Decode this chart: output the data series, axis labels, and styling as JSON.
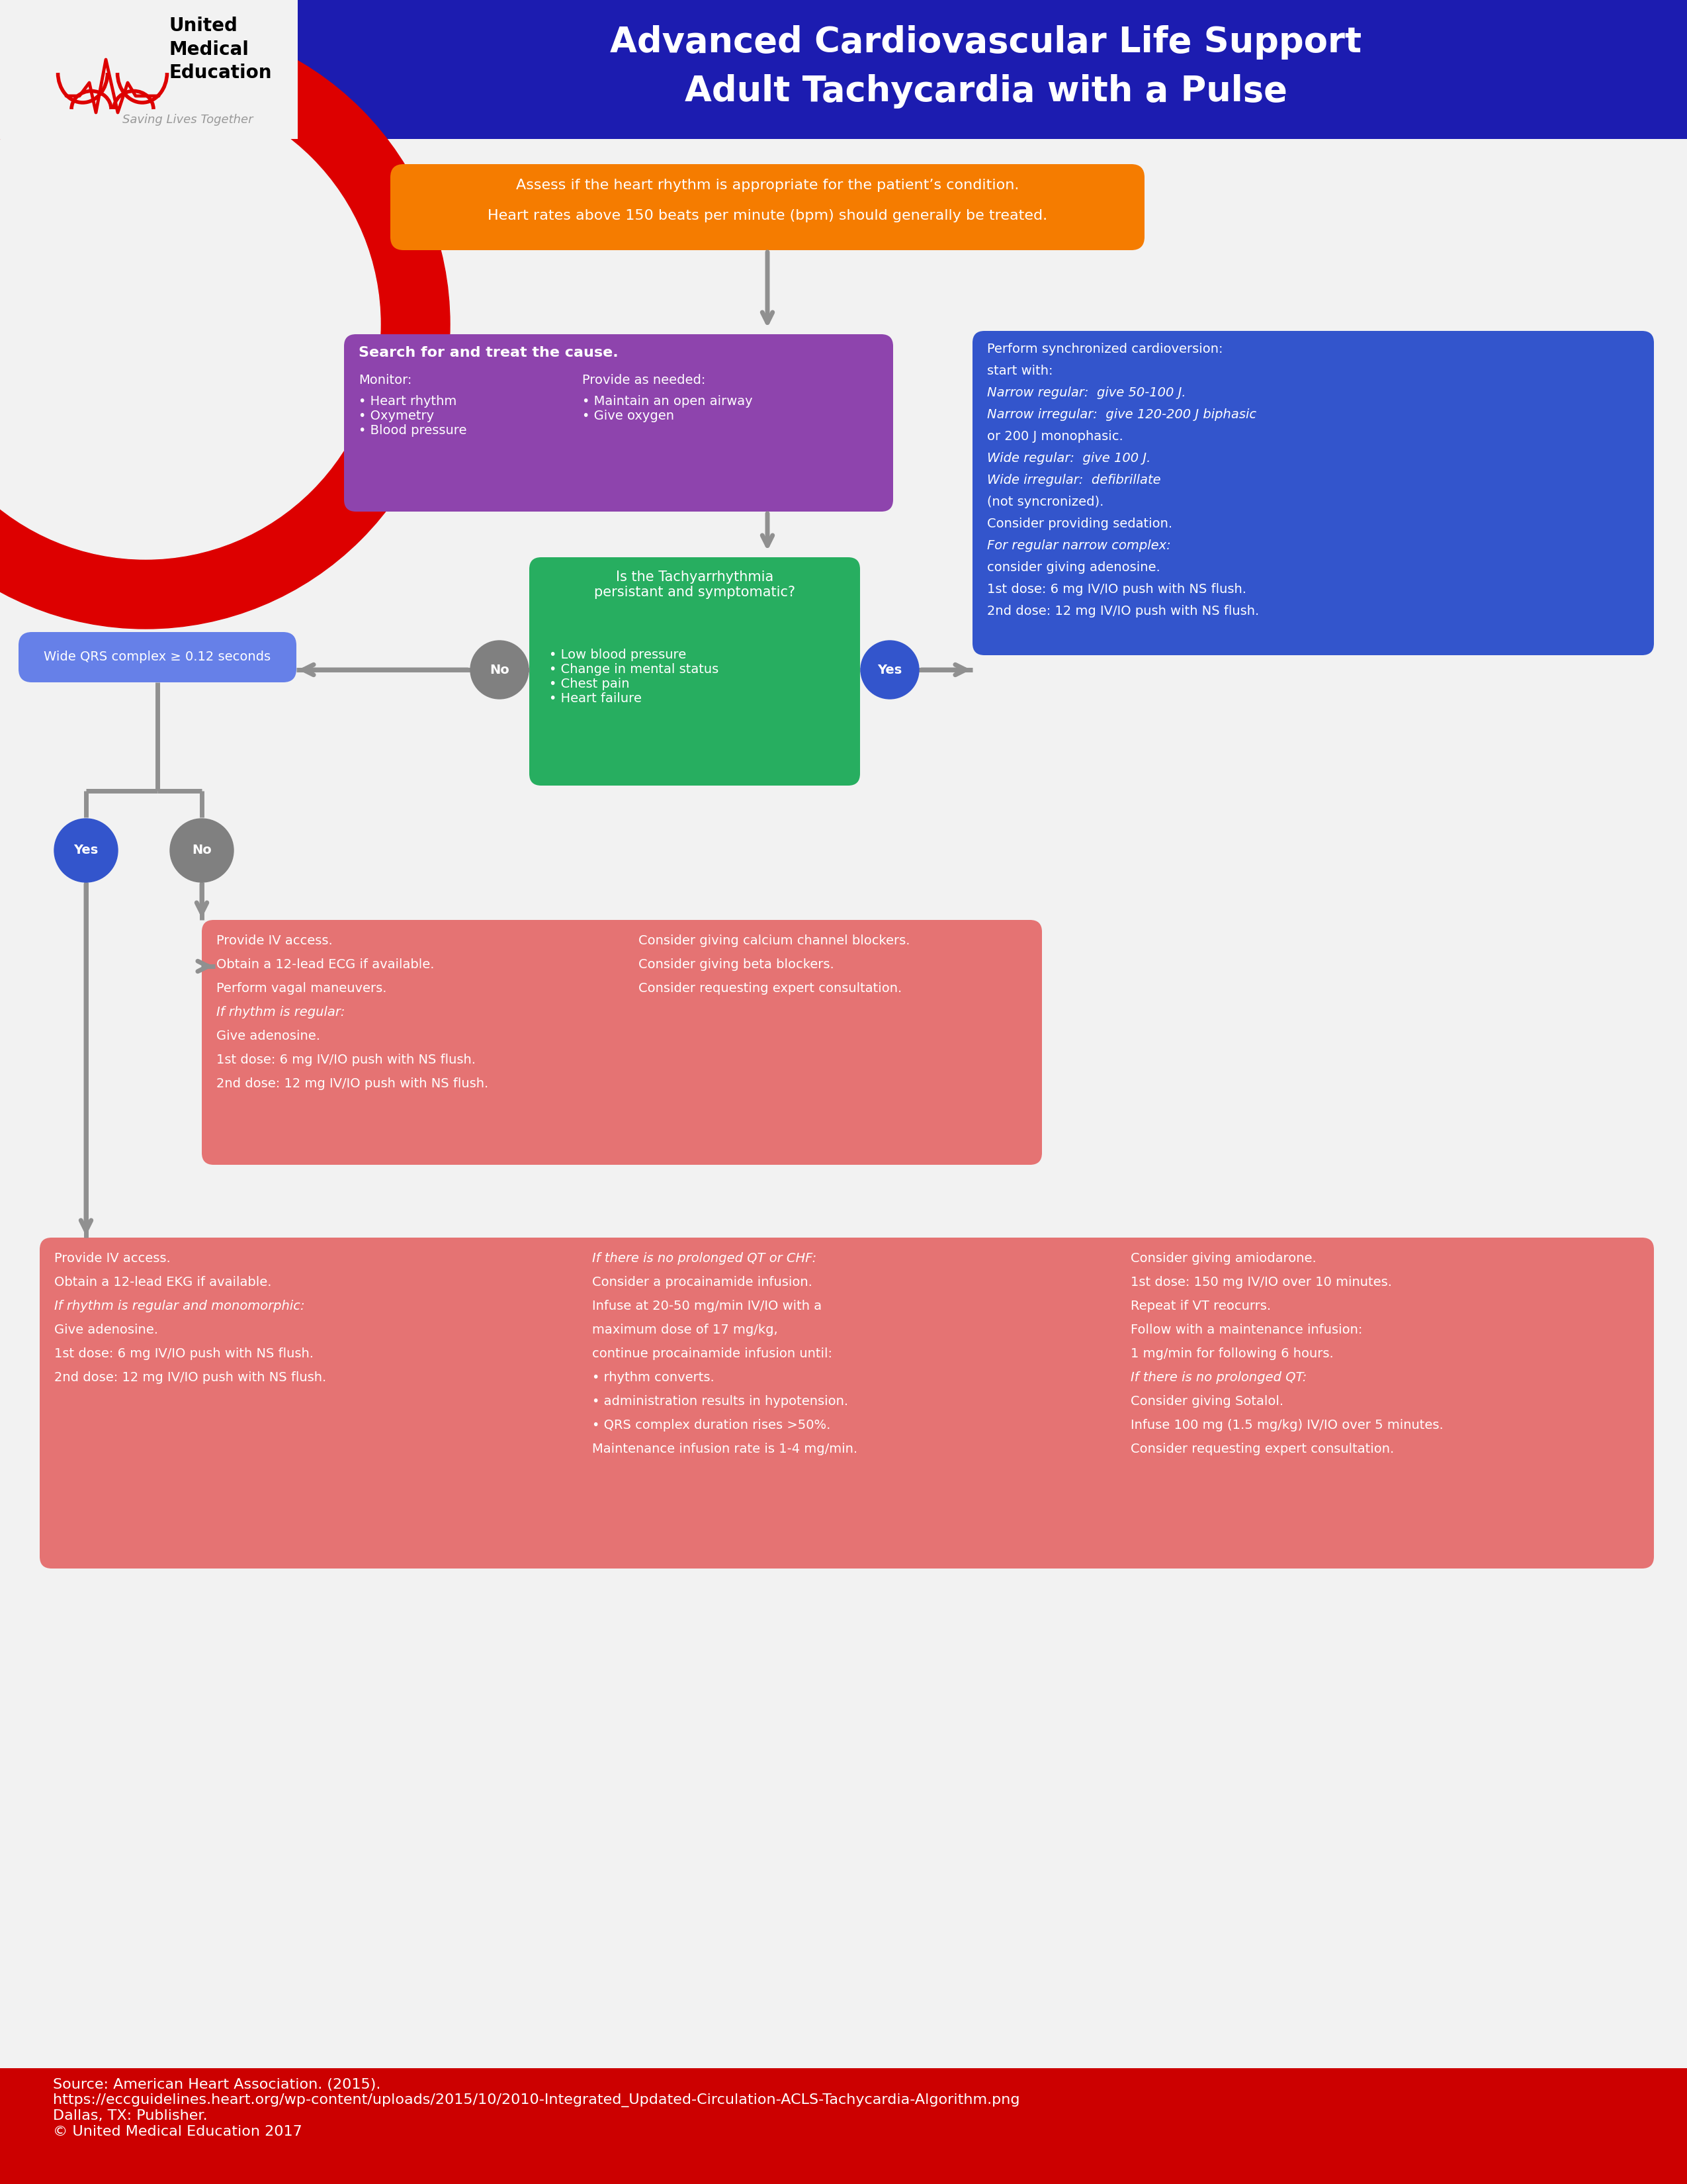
{
  "title_line1": "Advanced Cardiovascular Life Support",
  "title_line2": "Adult Tachycardia with a Pulse",
  "bg_color": "#F2F2F2",
  "header_bg": "#1C1CB0",
  "red_color": "#DD0000",
  "footer_bg": "#CC0000",
  "footer_text": "Source: American Heart Association. (2015).\nhttps://eccguidelines.heart.org/wp-content/uploads/2015/10/2010-Integrated_Updated-Circulation-ACLS-Tachycardia-Algorithm.png\nDallas, TX: Publisher.\n© United Medical Education 2017",
  "orange_color": "#F57C00",
  "purple_color": "#8E44AD",
  "green_color": "#27AE60",
  "blue_cv_color": "#3355CC",
  "blue_wqrs_color": "#6680E8",
  "pink_color": "#E57373",
  "yes_color": "#3355CC",
  "no_color": "#808080",
  "arrow_color": "#909090",
  "box1_l1": "Assess if the heart rhythm is appropriate for the patient’s condition.",
  "box1_l2": "Heart rates above 150 beats per minute (bpm) should generally be treated.",
  "box2_title": "Search for and treat the cause.",
  "box2_monitor_title": "Monitor:",
  "box2_monitor_items": "• Heart rhythm\n• Oxymetry\n• Blood pressure",
  "box2_provide_title": "Provide as needed:",
  "box2_provide_items": "• Maintain an open airway\n• Give oxygen",
  "box3_title": "Is the Tachyarrhythmia\npersistant and symptomatic?",
  "box3_items": "• Low blood pressure\n• Change in mental status\n• Chest pain\n• Heart failure",
  "box4_lines": [
    [
      "normal",
      "Perform synchronized cardioversion:"
    ],
    [
      "normal",
      "start with:"
    ],
    [
      "italic",
      "Narrow regular:  give 50-100 J."
    ],
    [
      "italic",
      "Narrow irregular:  give 120-200 J biphasic"
    ],
    [
      "normal",
      "or 200 J monophasic."
    ],
    [
      "italic",
      "Wide regular:  give 100 J."
    ],
    [
      "italic",
      "Wide irregular:  defibrillate"
    ],
    [
      "normal",
      "(not syncronized)."
    ],
    [
      "normal",
      "Consider providing sedation."
    ],
    [
      "italic",
      "For regular narrow complex:"
    ],
    [
      "normal",
      "consider giving adenosine."
    ],
    [
      "normal",
      "1st dose: 6 mg IV/IO push with NS flush."
    ],
    [
      "normal",
      "2nd dose: 12 mg IV/IO push with NS flush."
    ]
  ],
  "box5_text": "Wide QRS complex ≥ 0.12 seconds",
  "box6_left_lines": [
    [
      "normal",
      "Provide IV access."
    ],
    [
      "normal",
      "Obtain a 12-lead ECG if available."
    ],
    [
      "normal",
      "Perform vagal maneuvers."
    ],
    [
      "italic",
      "If rhythm is regular:"
    ],
    [
      "normal",
      "Give adenosine."
    ],
    [
      "normal",
      "1st dose: 6 mg IV/IO push with NS flush."
    ],
    [
      "normal",
      "2nd dose: 12 mg IV/IO push with NS flush."
    ]
  ],
  "box6_right_lines": [
    [
      "normal",
      "Consider giving calcium channel blockers."
    ],
    [
      "normal",
      "Consider giving beta blockers."
    ],
    [
      "normal",
      "Consider requesting expert consultation."
    ]
  ],
  "box7_col1_lines": [
    [
      "normal",
      "Provide IV access."
    ],
    [
      "normal",
      "Obtain a 12-lead EKG if available."
    ],
    [
      "italic",
      "If rhythm is regular and monomorphic:"
    ],
    [
      "normal",
      "Give adenosine."
    ],
    [
      "normal",
      "1st dose: 6 mg IV/IO push with NS flush."
    ],
    [
      "normal",
      "2nd dose: 12 mg IV/IO push with NS flush."
    ]
  ],
  "box7_col2_lines": [
    [
      "italic",
      "If there is no prolonged QT or CHF:"
    ],
    [
      "normal",
      "Consider a procainamide infusion."
    ],
    [
      "normal",
      "Infuse at 20-50 mg/min IV/IO with a"
    ],
    [
      "normal",
      "maximum dose of 17 mg/kg,"
    ],
    [
      "normal",
      "continue procainamide infusion until:"
    ],
    [
      "normal",
      "• rhythm converts."
    ],
    [
      "normal",
      "• administration results in hypotension."
    ],
    [
      "normal",
      "• QRS complex duration rises >50%."
    ],
    [
      "normal",
      "Maintenance infusion rate is 1-4 mg/min."
    ]
  ],
  "box7_col3_lines": [
    [
      "normal",
      "Consider giving amiodarone."
    ],
    [
      "normal",
      "1st dose: 150 mg IV/IO over 10 minutes."
    ],
    [
      "normal",
      "Repeat if VT reocurrs."
    ],
    [
      "normal",
      "Follow with a maintenance infusion:"
    ],
    [
      "normal",
      "1 mg/min for following 6 hours."
    ],
    [
      "italic",
      "If there is no prolonged QT:"
    ],
    [
      "normal",
      "Consider giving Sotalol."
    ],
    [
      "normal",
      "Infuse 100 mg (1.5 mg/kg) IV/IO over 5 minutes."
    ],
    [
      "normal",
      "Consider requesting expert consultation."
    ]
  ]
}
